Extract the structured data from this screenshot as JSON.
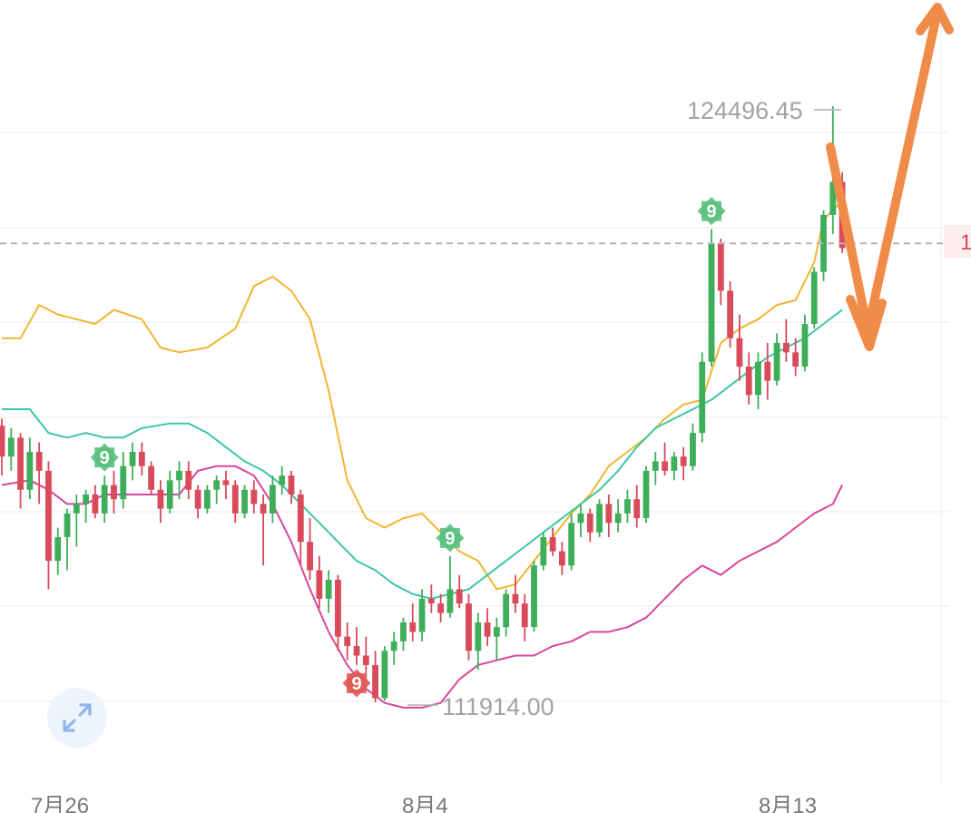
{
  "chart_data": {
    "type": "candlestick",
    "x_tick_labels": [
      "7月26",
      "8月4",
      "8月13"
    ],
    "annotations": {
      "high_label": "124496.45",
      "low_label": "111914.00"
    },
    "right_axis_fragment": "1",
    "current_price_line": 121600,
    "td_markers": [
      {
        "index": 11,
        "label": "9",
        "color": "#5cc07f",
        "position": "above"
      },
      {
        "index": 38,
        "label": "9",
        "color": "#e05a5a",
        "position": "below"
      },
      {
        "index": 48,
        "label": "9",
        "color": "#5cc07f",
        "position": "above"
      },
      {
        "index": 76,
        "label": "9",
        "color": "#5cc07f",
        "position": "above"
      }
    ],
    "candles": [
      [
        117750,
        117900,
        116700,
        117100
      ],
      [
        117100,
        117700,
        116800,
        117500
      ],
      [
        117500,
        117600,
        116000,
        116400
      ],
      [
        116400,
        117500,
        116200,
        117200
      ],
      [
        117200,
        117400,
        116100,
        116800
      ],
      [
        116800,
        117000,
        114300,
        114900
      ],
      [
        114900,
        115600,
        114600,
        115400
      ],
      [
        115400,
        116000,
        114700,
        115900
      ],
      [
        115900,
        116300,
        115200,
        116100
      ],
      [
        116100,
        116400,
        115700,
        116300
      ],
      [
        116300,
        116500,
        115800,
        115900
      ],
      [
        115900,
        116700,
        115700,
        116500
      ],
      [
        116500,
        116800,
        115900,
        116200
      ],
      [
        116200,
        117200,
        116000,
        116900
      ],
      [
        116900,
        117400,
        116600,
        117200
      ],
      [
        117200,
        117400,
        116700,
        116900
      ],
      [
        116900,
        117000,
        116300,
        116400
      ],
      [
        116400,
        116600,
        115700,
        116000
      ],
      [
        116000,
        116800,
        115900,
        116600
      ],
      [
        116600,
        117000,
        116200,
        116800
      ],
      [
        116800,
        117000,
        116200,
        116400
      ],
      [
        116400,
        116500,
        115800,
        116000
      ],
      [
        116000,
        116500,
        115900,
        116400
      ],
      [
        116400,
        116700,
        116100,
        116600
      ],
      [
        116600,
        116800,
        116200,
        116500
      ],
      [
        116500,
        116600,
        115700,
        115900
      ],
      [
        115900,
        116500,
        115800,
        116400
      ],
      [
        116400,
        116600,
        115900,
        116100
      ],
      [
        116100,
        116300,
        114800,
        115900
      ],
      [
        115900,
        116700,
        115700,
        116500
      ],
      [
        116500,
        116900,
        116300,
        116700
      ],
      [
        116700,
        116800,
        116100,
        116300
      ],
      [
        116300,
        116400,
        114800,
        115300
      ],
      [
        115300,
        115800,
        114500,
        114700
      ],
      [
        114700,
        115000,
        113900,
        114100
      ],
      [
        114100,
        114700,
        113800,
        114500
      ],
      [
        114500,
        114600,
        113000,
        113300
      ],
      [
        113300,
        113600,
        112800,
        113100
      ],
      [
        113100,
        113500,
        112700,
        112900
      ],
      [
        112900,
        113300,
        112400,
        112700
      ],
      [
        112700,
        113000,
        111914,
        112000
      ],
      [
        112000,
        113100,
        111950,
        113000
      ],
      [
        113000,
        113400,
        112700,
        113200
      ],
      [
        113200,
        113700,
        113000,
        113600
      ],
      [
        113600,
        114000,
        113200,
        113400
      ],
      [
        113400,
        114300,
        113200,
        114100
      ],
      [
        114100,
        114400,
        113800,
        114000
      ],
      [
        114000,
        114200,
        113600,
        113800
      ],
      [
        113800,
        115000,
        113700,
        114300
      ],
      [
        114300,
        114600,
        113900,
        114000
      ],
      [
        114000,
        114200,
        112800,
        113000
      ],
      [
        113000,
        113800,
        112600,
        113600
      ],
      [
        113600,
        113900,
        113100,
        113300
      ],
      [
        113300,
        113700,
        112800,
        113500
      ],
      [
        113500,
        114300,
        113300,
        114200
      ],
      [
        114200,
        114600,
        113800,
        114000
      ],
      [
        114000,
        114200,
        113200,
        113500
      ],
      [
        113500,
        114900,
        113400,
        114800
      ],
      [
        114800,
        115500,
        114700,
        115400
      ],
      [
        115400,
        115600,
        115000,
        115100
      ],
      [
        115100,
        115300,
        114600,
        114800
      ],
      [
        114800,
        115900,
        114700,
        115700
      ],
      [
        115700,
        116100,
        115400,
        115900
      ],
      [
        115900,
        116000,
        115300,
        115500
      ],
      [
        115500,
        116200,
        115400,
        116100
      ],
      [
        116100,
        116300,
        115400,
        115700
      ],
      [
        115700,
        116200,
        115500,
        115900
      ],
      [
        115900,
        116400,
        115700,
        116200
      ],
      [
        116200,
        116500,
        115600,
        115800
      ],
      [
        115800,
        116900,
        115700,
        116800
      ],
      [
        116800,
        117200,
        116500,
        117000
      ],
      [
        117000,
        117400,
        116700,
        116800
      ],
      [
        116800,
        117200,
        116600,
        117100
      ],
      [
        117100,
        117300,
        116600,
        116900
      ],
      [
        116900,
        117800,
        116800,
        117600
      ],
      [
        117600,
        119300,
        117400,
        119100
      ],
      [
        119100,
        121900,
        119000,
        121600
      ],
      [
        121600,
        121700,
        120300,
        120600
      ],
      [
        120600,
        120800,
        119400,
        119600
      ],
      [
        119600,
        120100,
        118700,
        119000
      ],
      [
        119000,
        119300,
        118200,
        118400
      ],
      [
        118400,
        119300,
        118100,
        119100
      ],
      [
        119100,
        119500,
        118300,
        118700
      ],
      [
        118700,
        119700,
        118600,
        119500
      ],
      [
        119500,
        120000,
        119100,
        119300
      ],
      [
        119300,
        119600,
        118800,
        119000
      ],
      [
        119000,
        120100,
        118900,
        119900
      ],
      [
        119900,
        121100,
        119800,
        121000
      ],
      [
        121000,
        122300,
        120800,
        122200
      ],
      [
        122200,
        124496.45,
        121800,
        122900
      ],
      [
        122900,
        123100,
        121400,
        121500
      ]
    ],
    "bollinger": {
      "upper_path": [
        [
          0,
          119600
        ],
        [
          2,
          119600
        ],
        [
          4,
          120300
        ],
        [
          6,
          120100
        ],
        [
          8,
          120000
        ],
        [
          10,
          119900
        ],
        [
          12,
          120200
        ],
        [
          15,
          120000
        ],
        [
          17,
          119400
        ],
        [
          19,
          119300
        ],
        [
          22,
          119400
        ],
        [
          25,
          119800
        ],
        [
          27,
          120700
        ],
        [
          29,
          120900
        ],
        [
          31,
          120600
        ],
        [
          33,
          120000
        ],
        [
          35,
          118500
        ],
        [
          37,
          116600
        ],
        [
          39,
          115800
        ],
        [
          41,
          115600
        ],
        [
          43,
          115800
        ],
        [
          45,
          115900
        ],
        [
          47,
          115500
        ],
        [
          49,
          115100
        ],
        [
          51,
          114900
        ],
        [
          53,
          114300
        ],
        [
          55,
          114400
        ],
        [
          57,
          114900
        ],
        [
          59,
          115400
        ],
        [
          61,
          115900
        ],
        [
          63,
          116300
        ],
        [
          65,
          116900
        ],
        [
          67,
          117200
        ],
        [
          69,
          117500
        ],
        [
          71,
          117900
        ],
        [
          73,
          118200
        ],
        [
          75,
          118300
        ],
        [
          77,
          119500
        ],
        [
          79,
          119800
        ],
        [
          81,
          120000
        ],
        [
          83,
          120300
        ],
        [
          85,
          120400
        ],
        [
          87,
          121200
        ],
        [
          88,
          122100
        ],
        [
          89,
          122300
        ],
        [
          90,
          122500
        ]
      ],
      "middle_path": [
        [
          0,
          118100
        ],
        [
          3,
          118100
        ],
        [
          5,
          117600
        ],
        [
          7,
          117500
        ],
        [
          9,
          117600
        ],
        [
          11,
          117500
        ],
        [
          13,
          117500
        ],
        [
          15,
          117700
        ],
        [
          18,
          117800
        ],
        [
          20,
          117800
        ],
        [
          22,
          117600
        ],
        [
          24,
          117300
        ],
        [
          26,
          117000
        ],
        [
          28,
          116800
        ],
        [
          30,
          116500
        ],
        [
          32,
          116100
        ],
        [
          34,
          115700
        ],
        [
          36,
          115300
        ],
        [
          38,
          114900
        ],
        [
          40,
          114700
        ],
        [
          42,
          114400
        ],
        [
          44,
          114200
        ],
        [
          46,
          114100
        ],
        [
          48,
          114200
        ],
        [
          50,
          114300
        ],
        [
          52,
          114600
        ],
        [
          54,
          114900
        ],
        [
          56,
          115200
        ],
        [
          58,
          115500
        ],
        [
          60,
          115800
        ],
        [
          62,
          116100
        ],
        [
          64,
          116400
        ],
        [
          66,
          116800
        ],
        [
          68,
          117300
        ],
        [
          70,
          117700
        ],
        [
          72,
          117900
        ],
        [
          74,
          118100
        ],
        [
          76,
          118300
        ],
        [
          78,
          118600
        ],
        [
          80,
          118900
        ],
        [
          82,
          119200
        ],
        [
          84,
          119400
        ],
        [
          86,
          119600
        ],
        [
          88,
          119900
        ],
        [
          90,
          120200
        ]
      ],
      "lower_path": [
        [
          0,
          116500
        ],
        [
          3,
          116600
        ],
        [
          5,
          116400
        ],
        [
          7,
          116100
        ],
        [
          9,
          116100
        ],
        [
          11,
          116300
        ],
        [
          13,
          116300
        ],
        [
          16,
          116300
        ],
        [
          19,
          116300
        ],
        [
          21,
          116800
        ],
        [
          23,
          116900
        ],
        [
          25,
          116900
        ],
        [
          27,
          116700
        ],
        [
          29,
          116100
        ],
        [
          31,
          115300
        ],
        [
          33,
          114300
        ],
        [
          35,
          113400
        ],
        [
          37,
          112700
        ],
        [
          39,
          112200
        ],
        [
          41,
          111900
        ],
        [
          43,
          111800
        ],
        [
          45,
          111800
        ],
        [
          47,
          111900
        ],
        [
          49,
          112400
        ],
        [
          51,
          112700
        ],
        [
          53,
          112800
        ],
        [
          55,
          112900
        ],
        [
          57,
          112900
        ],
        [
          59,
          113100
        ],
        [
          61,
          113200
        ],
        [
          63,
          113400
        ],
        [
          65,
          113400
        ],
        [
          67,
          113500
        ],
        [
          69,
          113700
        ],
        [
          71,
          114100
        ],
        [
          73,
          114500
        ],
        [
          75,
          114800
        ],
        [
          77,
          114600
        ],
        [
          79,
          114900
        ],
        [
          81,
          115100
        ],
        [
          83,
          115300
        ],
        [
          85,
          115600
        ],
        [
          87,
          115900
        ],
        [
          89,
          116100
        ],
        [
          90,
          116500
        ]
      ]
    },
    "colors": {
      "up": "#3fae5b",
      "down": "#d94a5a",
      "upper": "#efb632",
      "middle": "#3ec5a8",
      "lower": "#d6479c",
      "arrow": "#f08c4a",
      "grid": "#eeeeee"
    },
    "grid": true
  }
}
